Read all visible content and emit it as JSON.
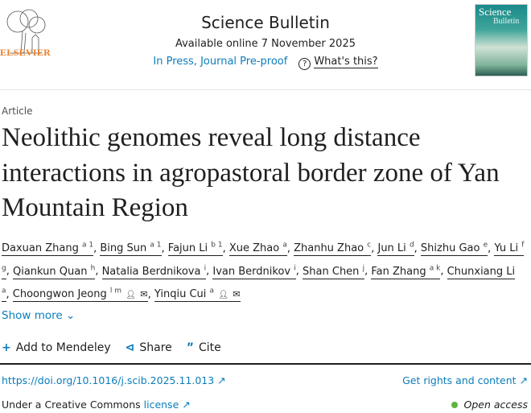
{
  "header": {
    "publisher": "ELSEVIER",
    "journal": "Science Bulletin",
    "available": "Available online 7 November 2025",
    "status": "In Press, Journal Pre-proof",
    "whats_this": "What's this?",
    "cover_title_1": "Science",
    "cover_title_2": "Bulletin"
  },
  "article": {
    "type": "Article",
    "title": "Neolithic genomes reveal long distance interactions in agropastoral border zone of Yan Mountain Region"
  },
  "authors": [
    {
      "name": "Daxuan Zhang",
      "sup": "a 1"
    },
    {
      "name": "Bing Sun",
      "sup": "a 1"
    },
    {
      "name": "Fajun Li",
      "sup": "b 1"
    },
    {
      "name": "Xue Zhao",
      "sup": "a"
    },
    {
      "name": "Zhanhu Zhao",
      "sup": "c"
    },
    {
      "name": "Jun Li",
      "sup": "d"
    },
    {
      "name": "Shizhu Gao",
      "sup": "e"
    },
    {
      "name": "Yu Li",
      "sup": "f g"
    },
    {
      "name": "Qiankun Quan",
      "sup": "h"
    },
    {
      "name": "Natalia Berdnikova",
      "sup": "i"
    },
    {
      "name": "Ivan Berdnikov",
      "sup": "i"
    },
    {
      "name": "Shan Chen",
      "sup": "j"
    },
    {
      "name": "Fan Zhang",
      "sup": "a k"
    },
    {
      "name": "Chunxiang Li",
      "sup": "a"
    },
    {
      "name": "Choongwon Jeong",
      "sup": "l m",
      "corresponding": true
    },
    {
      "name": "Yinqiu Cui",
      "sup": "a",
      "corresponding": true
    }
  ],
  "show_more": "Show more",
  "actions": {
    "mendeley": "Add to Mendeley",
    "share": "Share",
    "cite": "Cite"
  },
  "links": {
    "doi": "https://doi.org/10.1016/j.scib.2025.11.013",
    "rights": "Get rights and content",
    "license_prefix": "Under a Creative Commons",
    "license": "license",
    "open_access": "Open access"
  },
  "colors": {
    "link": "#0c7dbb",
    "brand": "#f07e26",
    "open_access": "#5bb43b"
  }
}
